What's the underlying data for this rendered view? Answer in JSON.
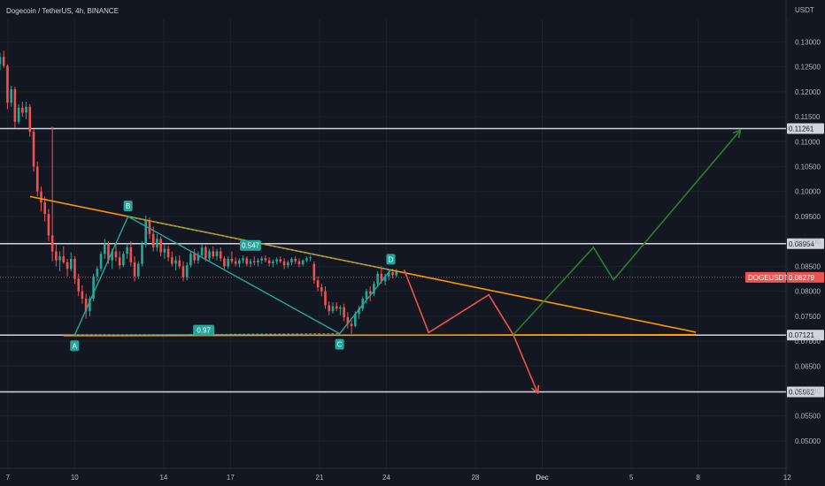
{
  "header": {
    "symbol_title": "Dogecoin / TetherUS, 4h, BINANCE",
    "currency": "USDT"
  },
  "colors": {
    "background": "#131722",
    "up": "#26a69a",
    "down": "#ef5350",
    "level_line": "#d1d4dc",
    "trend_line": "#ff9800",
    "pattern_line": "#26a69a",
    "bull_path": "#2e7d32",
    "bear_path": "#ef5350",
    "axis_text": "#b2b5be",
    "grid": "#1e222d"
  },
  "chart_data": {
    "type": "candlestick",
    "title": "Dogecoin / TetherUS, 4h, BINANCE",
    "ylabel": "USDT",
    "ylim": [
      0.0445,
      0.1345
    ],
    "y_ticks": [
      "0.13000",
      "0.12500",
      "0.12000",
      "0.11500",
      "0.11000",
      "0.10500",
      "0.10000",
      "0.09500",
      "0.09000",
      "0.08500",
      "0.08000",
      "0.07500",
      "0.07000",
      "0.06500",
      "0.06000",
      "0.05500",
      "0.05000"
    ],
    "x_ticks": [
      "7",
      "10",
      "14",
      "17",
      "21",
      "24",
      "28",
      "Dec",
      "5",
      "8",
      "12"
    ],
    "x_tick_positions": [
      0,
      3,
      7,
      10,
      14,
      17,
      21,
      24,
      28,
      31,
      35
    ],
    "x_range_days": [
      -0.35,
      34.95
    ],
    "last_price": {
      "label": "DOGEUSDT",
      "value": "0.08279"
    },
    "horizontal_levels": [
      {
        "value": 0.11261,
        "label": "0.11261"
      },
      {
        "value": 0.08954,
        "label": "0.08954"
      },
      {
        "value": 0.07121,
        "label": "0.07121"
      },
      {
        "value": 0.05982,
        "label": "0.05982"
      }
    ],
    "trendlines": [
      {
        "name": "descending resistance",
        "points": [
          [
            1.0,
            0.099
          ],
          [
            30.9,
            0.0718
          ]
        ]
      },
      {
        "name": "horizontal support",
        "points": [
          [
            2.5,
            0.0711
          ],
          [
            30.9,
            0.0713
          ]
        ]
      }
    ],
    "pattern": {
      "points": [
        {
          "label": "A",
          "day": 3.0,
          "value": 0.0712
        },
        {
          "label": "B",
          "day": 5.4,
          "value": 0.095
        },
        {
          "label": "C",
          "day": 14.9,
          "value": 0.0715
        },
        {
          "label": "D",
          "day": 17.2,
          "value": 0.0843
        }
      ],
      "ratios": [
        {
          "label": "0.547",
          "day": 10.9,
          "value": 0.0892
        },
        {
          "label": "0.97",
          "day": 8.8,
          "value": 0.0722
        }
      ]
    },
    "projections": [
      {
        "name": "bearish path",
        "points": [
          [
            17.8,
            0.0843
          ],
          [
            18.9,
            0.0717
          ],
          [
            21.6,
            0.0793
          ],
          [
            22.7,
            0.0713
          ],
          [
            23.8,
            0.0596
          ]
        ]
      },
      {
        "name": "bullish path",
        "points": [
          [
            22.7,
            0.0713
          ],
          [
            26.3,
            0.0888
          ],
          [
            27.2,
            0.0823
          ],
          [
            32.9,
            0.1123
          ]
        ]
      }
    ],
    "candles": [
      [
        0.1256,
        0.1278,
        0.1243,
        0.127
      ],
      [
        0.127,
        0.1282,
        0.1248,
        0.1252
      ],
      [
        0.1252,
        0.1255,
        0.1165,
        0.1178
      ],
      [
        0.1178,
        0.1212,
        0.117,
        0.1205
      ],
      [
        0.1205,
        0.121,
        0.1128,
        0.114
      ],
      [
        0.114,
        0.1175,
        0.1135,
        0.1168
      ],
      [
        0.1168,
        0.118,
        0.115,
        0.1158
      ],
      [
        0.1158,
        0.118,
        0.1145,
        0.117
      ],
      [
        0.117,
        0.1175,
        0.111,
        0.112
      ],
      [
        0.112,
        0.1125,
        0.104,
        0.105
      ],
      [
        0.105,
        0.106,
        0.099,
        0.1
      ],
      [
        0.1,
        0.101,
        0.096,
        0.0978
      ],
      [
        0.0978,
        0.099,
        0.094,
        0.0955
      ],
      [
        0.0955,
        0.0965,
        0.09,
        0.0912
      ],
      [
        0.0912,
        0.113,
        0.086,
        0.088
      ],
      [
        0.088,
        0.0895,
        0.085,
        0.0862
      ],
      [
        0.0862,
        0.088,
        0.084,
        0.087
      ],
      [
        0.087,
        0.089,
        0.0855,
        0.0858
      ],
      [
        0.0858,
        0.0865,
        0.083,
        0.0845
      ],
      [
        0.0845,
        0.0878,
        0.084,
        0.0865
      ],
      [
        0.0865,
        0.087,
        0.0815,
        0.0825
      ],
      [
        0.0825,
        0.0835,
        0.079,
        0.08
      ],
      [
        0.08,
        0.0812,
        0.0775,
        0.0785
      ],
      [
        0.0785,
        0.0795,
        0.0745,
        0.076
      ],
      [
        0.076,
        0.079,
        0.075,
        0.0785
      ],
      [
        0.0785,
        0.0835,
        0.078,
        0.083
      ],
      [
        0.083,
        0.085,
        0.082,
        0.0845
      ],
      [
        0.0845,
        0.088,
        0.084,
        0.0875
      ],
      [
        0.0875,
        0.0905,
        0.0865,
        0.0895
      ],
      [
        0.0895,
        0.09,
        0.0855,
        0.0862
      ],
      [
        0.0862,
        0.0885,
        0.0845,
        0.088
      ],
      [
        0.088,
        0.0895,
        0.086,
        0.0868
      ],
      [
        0.0868,
        0.088,
        0.0845,
        0.0852
      ],
      [
        0.0852,
        0.088,
        0.0848,
        0.0875
      ],
      [
        0.0875,
        0.0895,
        0.0865,
        0.0888
      ],
      [
        0.0888,
        0.09,
        0.085,
        0.0858
      ],
      [
        0.0858,
        0.087,
        0.082,
        0.083
      ],
      [
        0.083,
        0.086,
        0.0825,
        0.0855
      ],
      [
        0.0855,
        0.09,
        0.085,
        0.0895
      ],
      [
        0.0895,
        0.0952,
        0.0888,
        0.0942
      ],
      [
        0.0942,
        0.0948,
        0.0905,
        0.0915
      ],
      [
        0.0915,
        0.093,
        0.088,
        0.0888
      ],
      [
        0.0888,
        0.0915,
        0.088,
        0.0905
      ],
      [
        0.0905,
        0.091,
        0.087,
        0.0878
      ],
      [
        0.0878,
        0.0895,
        0.0865,
        0.0885
      ],
      [
        0.0885,
        0.0892,
        0.086,
        0.0868
      ],
      [
        0.0868,
        0.088,
        0.085,
        0.0855
      ],
      [
        0.0855,
        0.087,
        0.0842,
        0.0862
      ],
      [
        0.0862,
        0.0872,
        0.0845,
        0.085
      ],
      [
        0.085,
        0.086,
        0.082,
        0.0828
      ],
      [
        0.0828,
        0.0858,
        0.0822,
        0.0852
      ],
      [
        0.0852,
        0.088,
        0.0848,
        0.0875
      ],
      [
        0.0875,
        0.0885,
        0.0855,
        0.0862
      ],
      [
        0.0862,
        0.088,
        0.0855,
        0.0872
      ],
      [
        0.0872,
        0.0895,
        0.0866,
        0.0888
      ],
      [
        0.0888,
        0.0892,
        0.086,
        0.0866
      ],
      [
        0.0866,
        0.0885,
        0.086,
        0.088
      ],
      [
        0.088,
        0.089,
        0.0865,
        0.087
      ],
      [
        0.087,
        0.0885,
        0.0862,
        0.088
      ],
      [
        0.088,
        0.0888,
        0.086,
        0.0866
      ],
      [
        0.0866,
        0.087,
        0.0845,
        0.085
      ],
      [
        0.085,
        0.087,
        0.0845,
        0.0865
      ],
      [
        0.0865,
        0.088,
        0.0855,
        0.086
      ],
      [
        0.086,
        0.0868,
        0.085,
        0.0855
      ],
      [
        0.0855,
        0.0866,
        0.0848,
        0.0862
      ],
      [
        0.0862,
        0.0872,
        0.0856,
        0.0866
      ],
      [
        0.0866,
        0.087,
        0.085,
        0.0855
      ],
      [
        0.0855,
        0.0865,
        0.0848,
        0.086
      ],
      [
        0.086,
        0.087,
        0.0852,
        0.0858
      ],
      [
        0.0858,
        0.0866,
        0.085,
        0.0862
      ],
      [
        0.0862,
        0.087,
        0.0855,
        0.0866
      ],
      [
        0.0866,
        0.0872,
        0.0858,
        0.0862
      ],
      [
        0.0862,
        0.0868,
        0.085,
        0.0856
      ],
      [
        0.0856,
        0.0864,
        0.0848,
        0.086
      ],
      [
        0.086,
        0.0868,
        0.0854,
        0.0864
      ],
      [
        0.0864,
        0.087,
        0.0856,
        0.086
      ],
      [
        0.086,
        0.0866,
        0.0845,
        0.0852
      ],
      [
        0.0852,
        0.0862,
        0.0846,
        0.0858
      ],
      [
        0.0858,
        0.0868,
        0.0852,
        0.0865
      ],
      [
        0.0865,
        0.087,
        0.0855,
        0.086
      ],
      [
        0.086,
        0.0866,
        0.0848,
        0.0854
      ],
      [
        0.0854,
        0.0864,
        0.085,
        0.0862
      ],
      [
        0.0862,
        0.087,
        0.0858,
        0.0866
      ],
      [
        0.0866,
        0.0872,
        0.086,
        0.0868
      ],
      [
        0.0855,
        0.086,
        0.0815,
        0.0822
      ],
      [
        0.0822,
        0.083,
        0.08,
        0.0808
      ],
      [
        0.0808,
        0.0815,
        0.079,
        0.08
      ],
      [
        0.08,
        0.081,
        0.0765,
        0.0772
      ],
      [
        0.0772,
        0.078,
        0.0752,
        0.076
      ],
      [
        0.076,
        0.0778,
        0.0755,
        0.077
      ],
      [
        0.077,
        0.0778,
        0.076,
        0.0765
      ],
      [
        0.0765,
        0.0772,
        0.0752,
        0.0768
      ],
      [
        0.0768,
        0.0775,
        0.074,
        0.0748
      ],
      [
        0.0748,
        0.0758,
        0.0725,
        0.0735
      ],
      [
        0.0735,
        0.0742,
        0.0715,
        0.073
      ],
      [
        0.073,
        0.076,
        0.0728,
        0.0755
      ],
      [
        0.0755,
        0.077,
        0.0745,
        0.0765
      ],
      [
        0.0765,
        0.079,
        0.076,
        0.0785
      ],
      [
        0.0785,
        0.0805,
        0.0775,
        0.08
      ],
      [
        0.08,
        0.081,
        0.078,
        0.0795
      ],
      [
        0.0795,
        0.082,
        0.079,
        0.0815
      ],
      [
        0.0815,
        0.084,
        0.081,
        0.0835
      ],
      [
        0.0835,
        0.085,
        0.0815,
        0.082
      ],
      [
        0.082,
        0.0835,
        0.0812,
        0.083
      ],
      [
        0.083,
        0.0842,
        0.0822,
        0.0838
      ],
      [
        0.0838,
        0.0845,
        0.0826,
        0.0832
      ],
      [
        0.0832,
        0.0845,
        0.0828,
        0.084
      ]
    ]
  }
}
